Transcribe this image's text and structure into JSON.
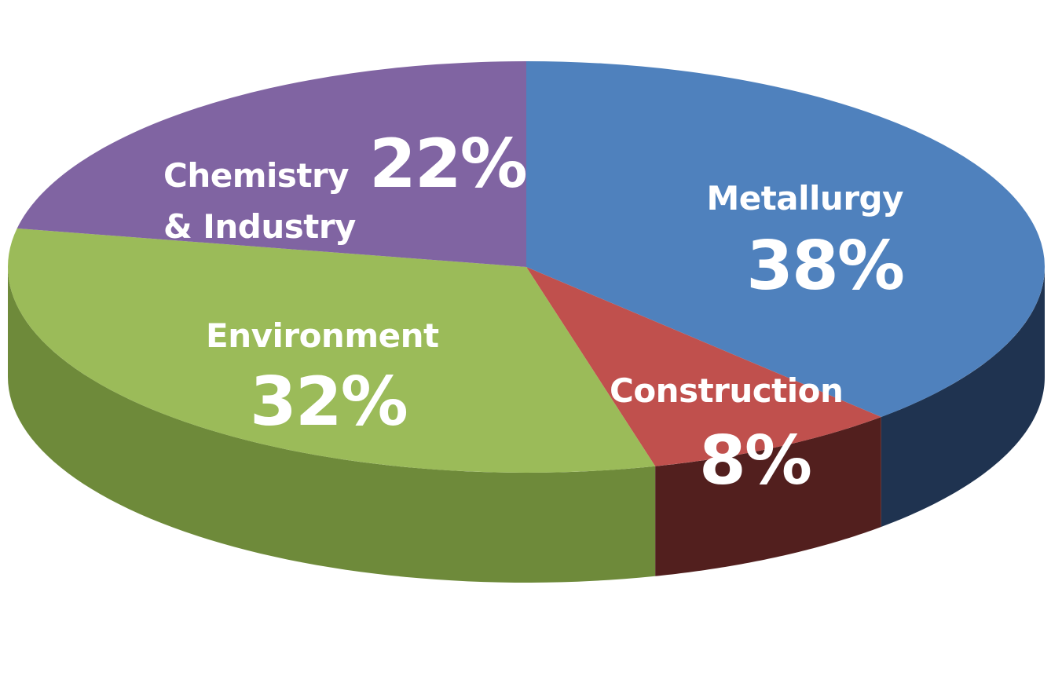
{
  "chart_data": {
    "type": "pie",
    "title": "",
    "three_d": true,
    "start_angle_deg": 90,
    "direction": "clockwise",
    "slices": [
      {
        "label": "Metallurgy",
        "value": 38,
        "display": "38%",
        "color": "#4F81BD",
        "side_color": "#1F3350"
      },
      {
        "label": "Construction",
        "value": 8,
        "display": "8%",
        "color": "#C0504D",
        "side_color": "#521F1E"
      },
      {
        "label": "Environment",
        "value": 32,
        "display": "32%",
        "color": "#9BBB59",
        "side_color": "#6E8A3A"
      },
      {
        "label": "Chemistry\n& Industry",
        "value": 22,
        "display": "22%",
        "color": "#8064A2",
        "side_color": "#4A3A60"
      }
    ]
  }
}
